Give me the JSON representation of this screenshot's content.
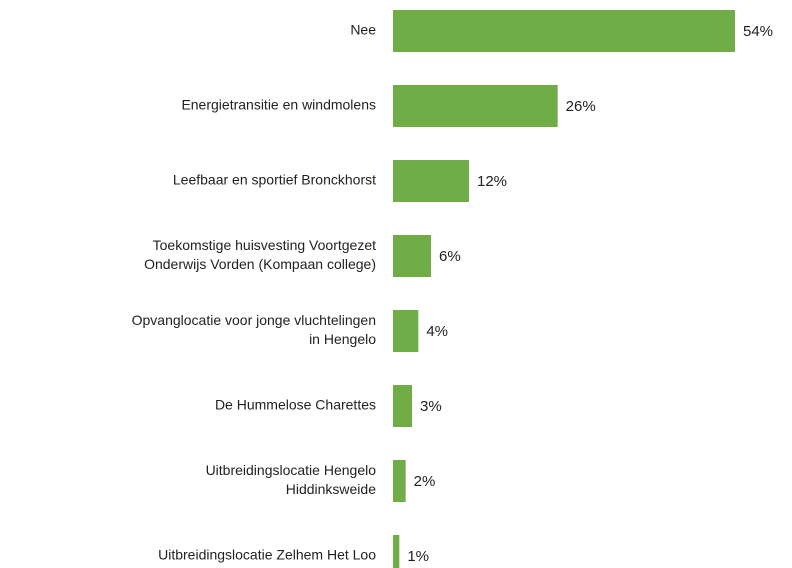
{
  "chart_data": {
    "type": "bar",
    "orientation": "horizontal",
    "categories": [
      [
        "Nee"
      ],
      [
        "Energietransitie en windmolens"
      ],
      [
        "Leefbaar en sportief Bronckhorst"
      ],
      [
        "Toekomstige huisvesting Voortgezet",
        "Onderwijs Vorden (Kompaan college)"
      ],
      [
        "Opvanglocatie voor jonge vluchtelingen",
        "in Hengelo"
      ],
      [
        "De Hummelose Charettes"
      ],
      [
        "Uitbreidingslocatie Hengelo",
        "Hiddinksweide"
      ],
      [
        "Uitbreidingslocatie Zelhem Het Loo"
      ]
    ],
    "values": [
      54,
      26,
      12,
      6,
      4,
      3,
      2,
      1
    ],
    "value_labels": [
      "54%",
      "26%",
      "12%",
      "6%",
      "4%",
      "3%",
      "2%",
      "1%"
    ],
    "color": "#70ad47"
  }
}
